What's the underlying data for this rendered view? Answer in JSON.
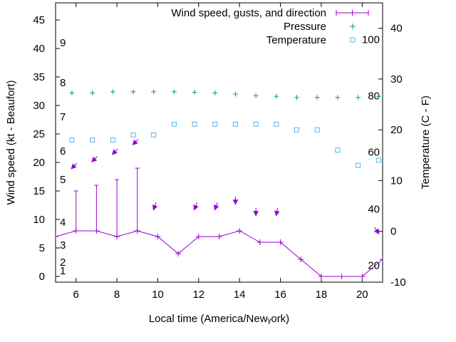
{
  "chart_data": {
    "type": "line",
    "xlabel": "Local time (America/Newᵧork)",
    "ylabel": "Wind speed (kt - Beaufort)",
    "y2label": "Temperature (C - F)",
    "xlim": [
      5,
      21
    ],
    "ylim": [
      -1,
      48
    ],
    "y2lim": [
      -10,
      45
    ],
    "xticks": [
      6,
      8,
      10,
      12,
      14,
      16,
      18,
      20
    ],
    "yticks": [
      0,
      5,
      10,
      15,
      20,
      25,
      30,
      35,
      40,
      45
    ],
    "y2ticks": [
      -10,
      0,
      10,
      20,
      30,
      40
    ],
    "legend_position": "top-right",
    "beaufort_labels": [
      {
        "y": 1,
        "label": "1"
      },
      {
        "y": 2.5,
        "label": "2"
      },
      {
        "y": 5.5,
        "label": "3"
      },
      {
        "y": 9.5,
        "label": "4"
      },
      {
        "y": 17,
        "label": "5"
      },
      {
        "y": 22,
        "label": "6"
      },
      {
        "y": 28,
        "label": "7"
      },
      {
        "y": 34,
        "label": "8"
      },
      {
        "y": 41,
        "label": "9"
      }
    ],
    "fahrenheit_labels": [
      {
        "c": -6.7,
        "label": "20"
      },
      {
        "c": 4.4,
        "label": "40"
      },
      {
        "c": 15.6,
        "label": "60"
      },
      {
        "c": 26.7,
        "label": "80"
      },
      {
        "c": 37.8,
        "label": "100"
      }
    ],
    "series": [
      {
        "name": "Wind speed, gusts, and direction",
        "color": "#9400d3",
        "x": [
          5,
          6,
          7,
          8,
          9,
          10,
          11,
          12,
          13,
          14,
          15,
          16,
          17,
          18,
          19,
          20,
          21
        ],
        "values": [
          7,
          8,
          8,
          7,
          8,
          7,
          4,
          7,
          7,
          8,
          6,
          6,
          3,
          0,
          0,
          0,
          3
        ],
        "gusts": [
          null,
          15,
          16,
          17,
          19,
          null,
          null,
          null,
          null,
          null,
          null,
          null,
          null,
          null,
          null,
          null,
          null
        ],
        "arrows": [
          {
            "x": 5.8,
            "y": 19,
            "angle": 225
          },
          {
            "x": 6.8,
            "y": 20.2,
            "angle": 225
          },
          {
            "x": 7.8,
            "y": 21.5,
            "angle": 225
          },
          {
            "x": 8.8,
            "y": 23.2,
            "angle": 225
          },
          {
            "x": 9.8,
            "y": 11.8,
            "angle": 200
          },
          {
            "x": 11.8,
            "y": 11.8,
            "angle": 200
          },
          {
            "x": 12.8,
            "y": 11.8,
            "angle": 200
          },
          {
            "x": 13.8,
            "y": 12.8,
            "angle": 180
          },
          {
            "x": 14.8,
            "y": 10.8,
            "angle": 180
          },
          {
            "x": 15.8,
            "y": 10.8,
            "angle": 190
          },
          {
            "x": 20.8,
            "y": 7.6,
            "angle": 145
          }
        ]
      },
      {
        "name": "Pressure",
        "color": "#009e73",
        "axis": "y1",
        "x": [
          5.8,
          6.8,
          7.8,
          8.8,
          9.8,
          10.8,
          11.8,
          12.8,
          13.8,
          14.8,
          15.8,
          16.8,
          17.8,
          18.8,
          19.8,
          20.8
        ],
        "values": [
          32.2,
          32.2,
          32.4,
          32.4,
          32.4,
          32.4,
          32.3,
          32.2,
          32.0,
          31.7,
          31.6,
          31.4,
          31.4,
          31.4,
          31.4,
          31.6
        ]
      },
      {
        "name": "Temperature",
        "color": "#56b4e9",
        "axis": "y2",
        "x": [
          5.8,
          6.8,
          7.8,
          8.8,
          9.8,
          10.8,
          11.8,
          12.8,
          13.8,
          14.8,
          15.8,
          16.8,
          17.8,
          18.8,
          19.8,
          20.8
        ],
        "values": [
          18,
          18,
          18,
          19,
          19,
          21.1,
          21.1,
          21.1,
          21.1,
          21.1,
          21.1,
          20,
          20,
          16,
          13,
          14
        ]
      }
    ]
  }
}
